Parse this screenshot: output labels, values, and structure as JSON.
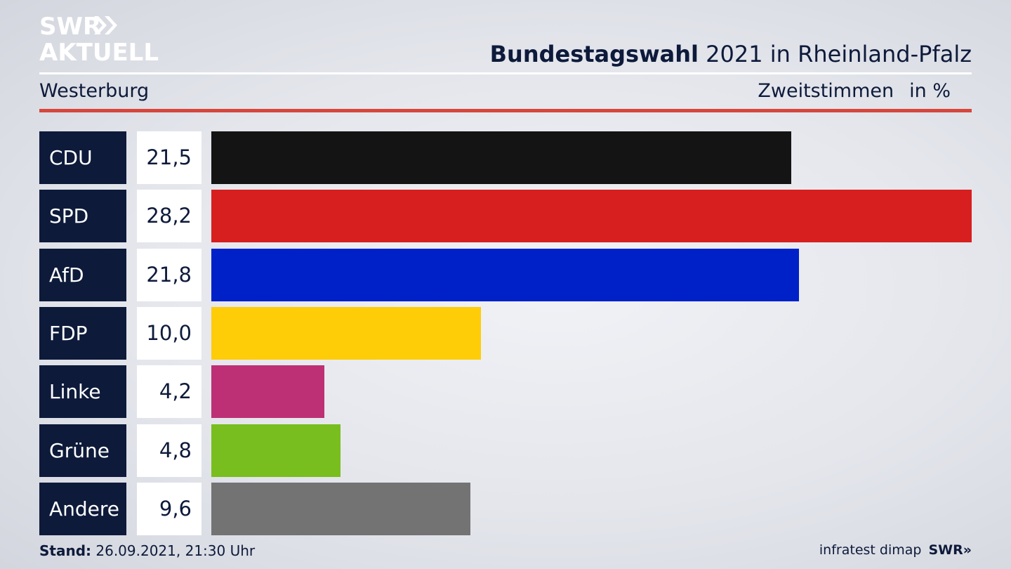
{
  "brand": {
    "logo_line1": "SWR",
    "logo_line2": "AKTUELL",
    "footer_logo": "SWR»"
  },
  "header": {
    "title_bold": "Bundestagswahl",
    "title_rest": " 2021 in Rheinland-Pfalz",
    "region": "Westerburg",
    "measure": "Zweitstimmen",
    "unit": "in %"
  },
  "footer": {
    "stand_label": "Stand:",
    "stand_value": " 26.09.2021, 21:30 Uhr",
    "source": "infratest dimap"
  },
  "colors": {
    "accent_red": "#d7463c",
    "label_bg": "#0d1a3a"
  },
  "chart_data": {
    "type": "bar",
    "orientation": "horizontal",
    "categories": [
      "CDU",
      "SPD",
      "AfD",
      "FDP",
      "Linke",
      "Grüne",
      "Andere"
    ],
    "values": [
      21.5,
      28.2,
      21.8,
      10.0,
      4.2,
      4.8,
      9.6
    ],
    "value_labels": [
      "21,5",
      "28,2",
      "21,8",
      "10,0",
      "4,2",
      "4,8",
      "9,6"
    ],
    "colors": [
      "#141414",
      "#d71f1f",
      "#0021c8",
      "#ffcc08",
      "#be3075",
      "#78be1e",
      "#737373"
    ],
    "xlim": [
      0,
      28.2
    ],
    "grid": false,
    "legend": "none"
  }
}
